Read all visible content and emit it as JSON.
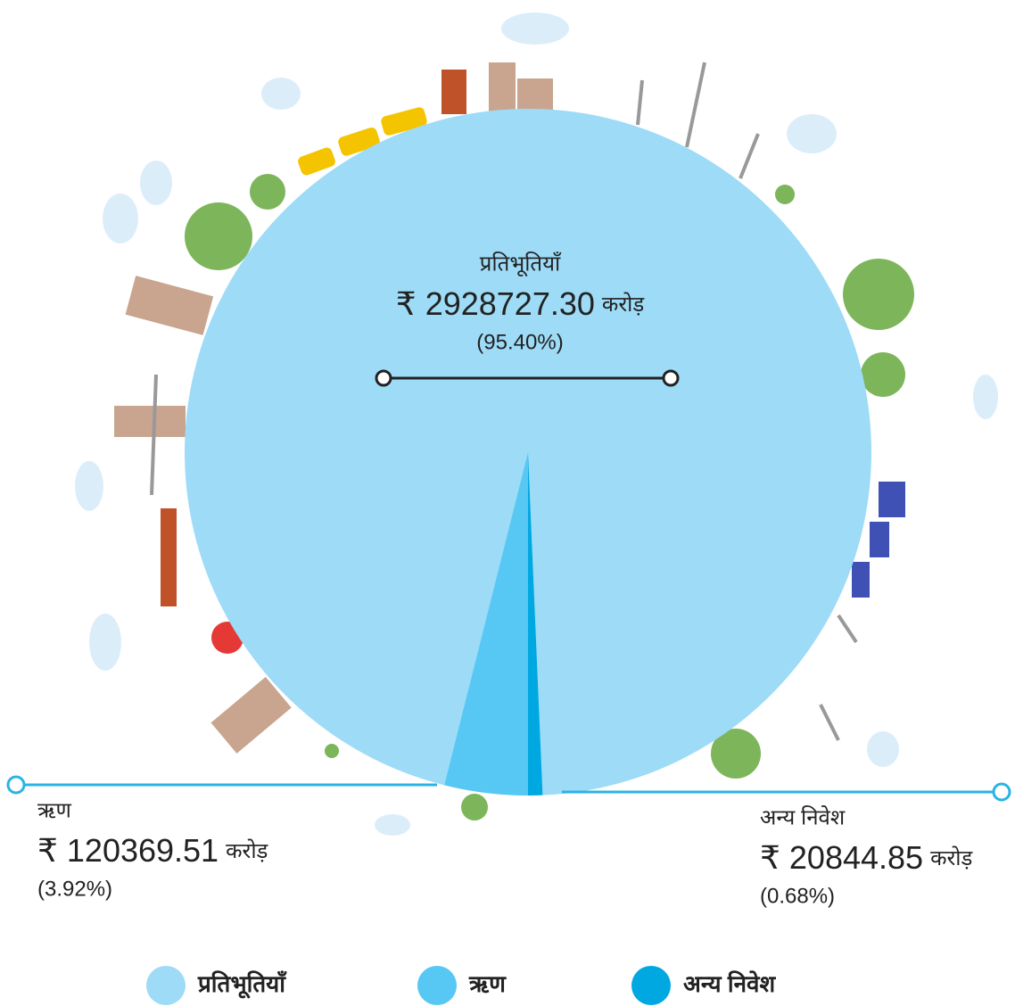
{
  "chart_data": {
    "type": "pie",
    "categories": [
      "प्रतिभूतियॉं",
      "ऋण",
      "अन्य निवेश"
    ],
    "values": [
      2928727.3,
      120369.51,
      20844.85
    ],
    "value_labels": [
      "₹ 2928727.30",
      "₹ 120369.51",
      "₹ 20844.85"
    ],
    "unit": "करोड़",
    "percent_labels": [
      "(95.40%)",
      "(3.92%)",
      "(0.68%)"
    ],
    "colors": [
      "#9ddbf7",
      "#56c8f3",
      "#00a8e1"
    ]
  }
}
